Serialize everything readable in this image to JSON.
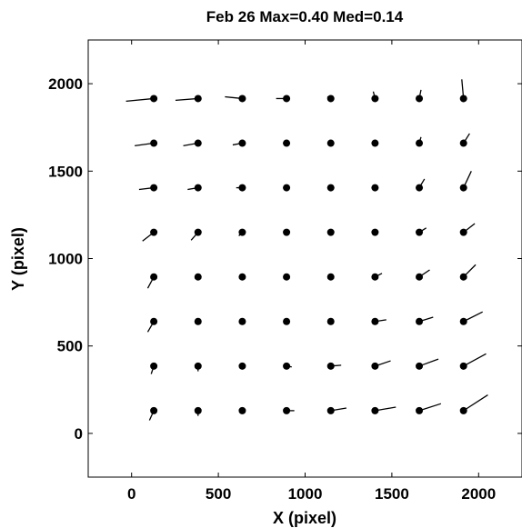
{
  "chart_data": {
    "type": "scatter",
    "title": "Feb 26 Max=0.40 Med=0.14",
    "xlabel": "X (pixel)",
    "ylabel": "Y (pixel)",
    "xlim": [
      -250,
      2250
    ],
    "ylim": [
      -250,
      2250
    ],
    "xticks": [
      0,
      500,
      1000,
      1500,
      2000
    ],
    "yticks": [
      0,
      500,
      1000,
      1500,
      2000
    ],
    "grid": false,
    "series": [
      {
        "points": [
          {
            "x": 128,
            "y": 130,
            "dx": -25,
            "dy": -55
          },
          {
            "x": 383,
            "y": 130,
            "dx": 0,
            "dy": -30
          },
          {
            "x": 638,
            "y": 130,
            "dx": 0,
            "dy": -10
          },
          {
            "x": 893,
            "y": 130,
            "dx": 45,
            "dy": 0
          },
          {
            "x": 1148,
            "y": 130,
            "dx": 90,
            "dy": 15
          },
          {
            "x": 1403,
            "y": 130,
            "dx": 120,
            "dy": 20
          },
          {
            "x": 1658,
            "y": 130,
            "dx": 125,
            "dy": 40
          },
          {
            "x": 1913,
            "y": 130,
            "dx": 140,
            "dy": 90
          },
          {
            "x": 128,
            "y": 385,
            "dx": -15,
            "dy": -45
          },
          {
            "x": 383,
            "y": 385,
            "dx": 0,
            "dy": -30
          },
          {
            "x": 638,
            "y": 385,
            "dx": 0,
            "dy": 0
          },
          {
            "x": 893,
            "y": 385,
            "dx": 30,
            "dy": -5
          },
          {
            "x": 1148,
            "y": 385,
            "dx": 60,
            "dy": 5
          },
          {
            "x": 1403,
            "y": 385,
            "dx": 90,
            "dy": 30
          },
          {
            "x": 1658,
            "y": 385,
            "dx": 110,
            "dy": 40
          },
          {
            "x": 1913,
            "y": 385,
            "dx": 130,
            "dy": 70
          },
          {
            "x": 128,
            "y": 640,
            "dx": -35,
            "dy": -60
          },
          {
            "x": 383,
            "y": 640,
            "dx": 0,
            "dy": 0
          },
          {
            "x": 638,
            "y": 640,
            "dx": 0,
            "dy": 0
          },
          {
            "x": 893,
            "y": 640,
            "dx": 0,
            "dy": 0
          },
          {
            "x": 1148,
            "y": 640,
            "dx": 15,
            "dy": -10
          },
          {
            "x": 1403,
            "y": 640,
            "dx": 65,
            "dy": 10
          },
          {
            "x": 1658,
            "y": 640,
            "dx": 80,
            "dy": 25
          },
          {
            "x": 1913,
            "y": 640,
            "dx": 110,
            "dy": 55
          },
          {
            "x": 128,
            "y": 895,
            "dx": -35,
            "dy": -65
          },
          {
            "x": 383,
            "y": 895,
            "dx": 0,
            "dy": 0
          },
          {
            "x": 638,
            "y": 895,
            "dx": 0,
            "dy": 0
          },
          {
            "x": 893,
            "y": 895,
            "dx": 0,
            "dy": 0
          },
          {
            "x": 1148,
            "y": 895,
            "dx": 0,
            "dy": 0
          },
          {
            "x": 1403,
            "y": 895,
            "dx": 40,
            "dy": 20
          },
          {
            "x": 1658,
            "y": 895,
            "dx": 60,
            "dy": 40
          },
          {
            "x": 1913,
            "y": 895,
            "dx": 70,
            "dy": 70
          },
          {
            "x": 128,
            "y": 1150,
            "dx": -65,
            "dy": -50
          },
          {
            "x": 383,
            "y": 1150,
            "dx": -40,
            "dy": -45
          },
          {
            "x": 638,
            "y": 1150,
            "dx": -20,
            "dy": -20
          },
          {
            "x": 893,
            "y": 1150,
            "dx": 0,
            "dy": 0
          },
          {
            "x": 1148,
            "y": 1150,
            "dx": 0,
            "dy": 0
          },
          {
            "x": 1403,
            "y": 1150,
            "dx": 0,
            "dy": 0
          },
          {
            "x": 1658,
            "y": 1150,
            "dx": 40,
            "dy": 25
          },
          {
            "x": 1913,
            "y": 1150,
            "dx": 65,
            "dy": 50
          },
          {
            "x": 128,
            "y": 1405,
            "dx": -85,
            "dy": -10
          },
          {
            "x": 383,
            "y": 1405,
            "dx": -60,
            "dy": -10
          },
          {
            "x": 638,
            "y": 1405,
            "dx": -35,
            "dy": 0
          },
          {
            "x": 893,
            "y": 1405,
            "dx": 0,
            "dy": 0
          },
          {
            "x": 1148,
            "y": 1405,
            "dx": 0,
            "dy": 0
          },
          {
            "x": 1403,
            "y": 1405,
            "dx": 0,
            "dy": 0
          },
          {
            "x": 1658,
            "y": 1405,
            "dx": 30,
            "dy": 50
          },
          {
            "x": 1913,
            "y": 1405,
            "dx": 45,
            "dy": 95
          },
          {
            "x": 128,
            "y": 1660,
            "dx": -110,
            "dy": -15
          },
          {
            "x": 383,
            "y": 1660,
            "dx": -85,
            "dy": -15
          },
          {
            "x": 638,
            "y": 1660,
            "dx": -55,
            "dy": -10
          },
          {
            "x": 893,
            "y": 1660,
            "dx": -20,
            "dy": 0
          },
          {
            "x": 1148,
            "y": 1660,
            "dx": 0,
            "dy": 0
          },
          {
            "x": 1403,
            "y": 1660,
            "dx": 0,
            "dy": 0
          },
          {
            "x": 1658,
            "y": 1660,
            "dx": 10,
            "dy": 35
          },
          {
            "x": 1913,
            "y": 1660,
            "dx": 35,
            "dy": 55
          },
          {
            "x": 128,
            "y": 1915,
            "dx": -160,
            "dy": -15
          },
          {
            "x": 383,
            "y": 1915,
            "dx": -130,
            "dy": -10
          },
          {
            "x": 638,
            "y": 1915,
            "dx": -100,
            "dy": 10
          },
          {
            "x": 893,
            "y": 1915,
            "dx": -60,
            "dy": 0
          },
          {
            "x": 1148,
            "y": 1915,
            "dx": -20,
            "dy": 10
          },
          {
            "x": 1403,
            "y": 1915,
            "dx": -10,
            "dy": 40
          },
          {
            "x": 1658,
            "y": 1915,
            "dx": 10,
            "dy": 50
          },
          {
            "x": 1913,
            "y": 1915,
            "dx": -10,
            "dy": 110
          }
        ]
      }
    ]
  }
}
